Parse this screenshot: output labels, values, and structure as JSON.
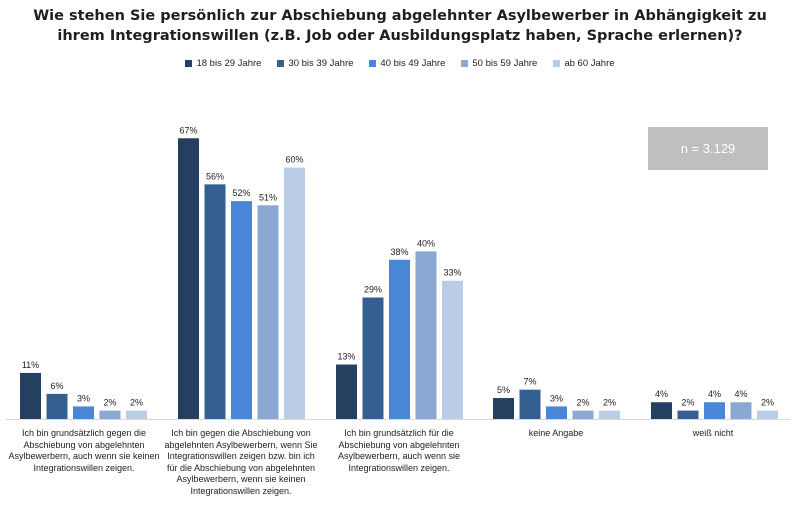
{
  "title": "Wie stehen Sie persönlich zur Abschiebung abgelehnter Asylbewerber in Abhängigkeit zu ihrem Integrationswillen (z.B. Job oder Ausbildungsplatz haben, Sprache erlernen)?",
  "sample_size": "n = 3.129",
  "chart_data": {
    "type": "bar",
    "title": "Wie stehen Sie persönlich zur Abschiebung abgelehnter Asylbewerber in Abhängigkeit zu ihrem Integrationswillen (z.B. Job oder Ausbildungsplatz haben, Sprache erlernen)?",
    "categories": [
      "Ich bin grundsätzlich gegen die Abschiebung von abgelehnten Asylbewerbern, auch wenn sie keinen Integrationswillen zeigen.",
      "Ich bin gegen die Abschiebung von abgelehnten Asylbewerbern, wenn Sie Integrationswillen zeigen bzw. bin ich für die Abschiebung von abgelehnten Asylbewerbern, wenn sie keinen Integrationswillen zeigen.",
      "Ich bin grundsätzlich für die Abschiebung von abgelehnten Asylbewerbern, auch wenn sie Integrationswillen zeigen.",
      "keine Angabe",
      "weiß nicht"
    ],
    "series": [
      {
        "name": "18 bis 29 Jahre",
        "color": "#243f60",
        "values": [
          11,
          67,
          13,
          5,
          4
        ]
      },
      {
        "name": "30 bis 39 Jahre",
        "color": "#355f91",
        "values": [
          6,
          56,
          29,
          7,
          2
        ]
      },
      {
        "name": "40 bis 49 Jahre",
        "color": "#4a86d6",
        "values": [
          3,
          52,
          38,
          3,
          4
        ]
      },
      {
        "name": "50 bis 59 Jahre",
        "color": "#8aa8d2",
        "values": [
          2,
          51,
          40,
          2,
          4
        ]
      },
      {
        "name": "ab 60 Jahre",
        "color": "#b9cde6",
        "values": [
          2,
          60,
          33,
          2,
          2
        ]
      }
    ],
    "value_suffix": "%",
    "ylim": [
      0,
      70
    ],
    "grid": false,
    "legend_position": "top"
  }
}
